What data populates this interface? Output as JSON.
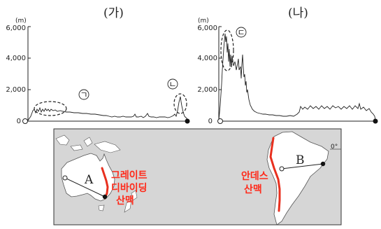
{
  "panel_a": {
    "title": "(가)",
    "unit": "(m)",
    "y_ticks": [
      "6,000",
      "4,000",
      "2,000",
      "0"
    ],
    "x_start": "0",
    "marker_1": "ㄱ",
    "marker_2": "ㄴ"
  },
  "panel_b": {
    "title": "(나)",
    "unit": "(m)",
    "y_ticks": [
      "6,000",
      "4,000",
      "2,000",
      "0"
    ],
    "x_start": "0",
    "marker_1": "ㄷ"
  },
  "map": {
    "label_great_dividing": [
      "그레이트",
      "디바이딩",
      "산맥"
    ],
    "label_andes": [
      "안데스",
      "산맥"
    ],
    "point_a": "A",
    "point_b": "B",
    "equator": "0°",
    "colors": {
      "land": "#ffffff",
      "sea": "#d6d6d6",
      "range": "#e8301f",
      "label": "#ff2a1a"
    }
  }
}
